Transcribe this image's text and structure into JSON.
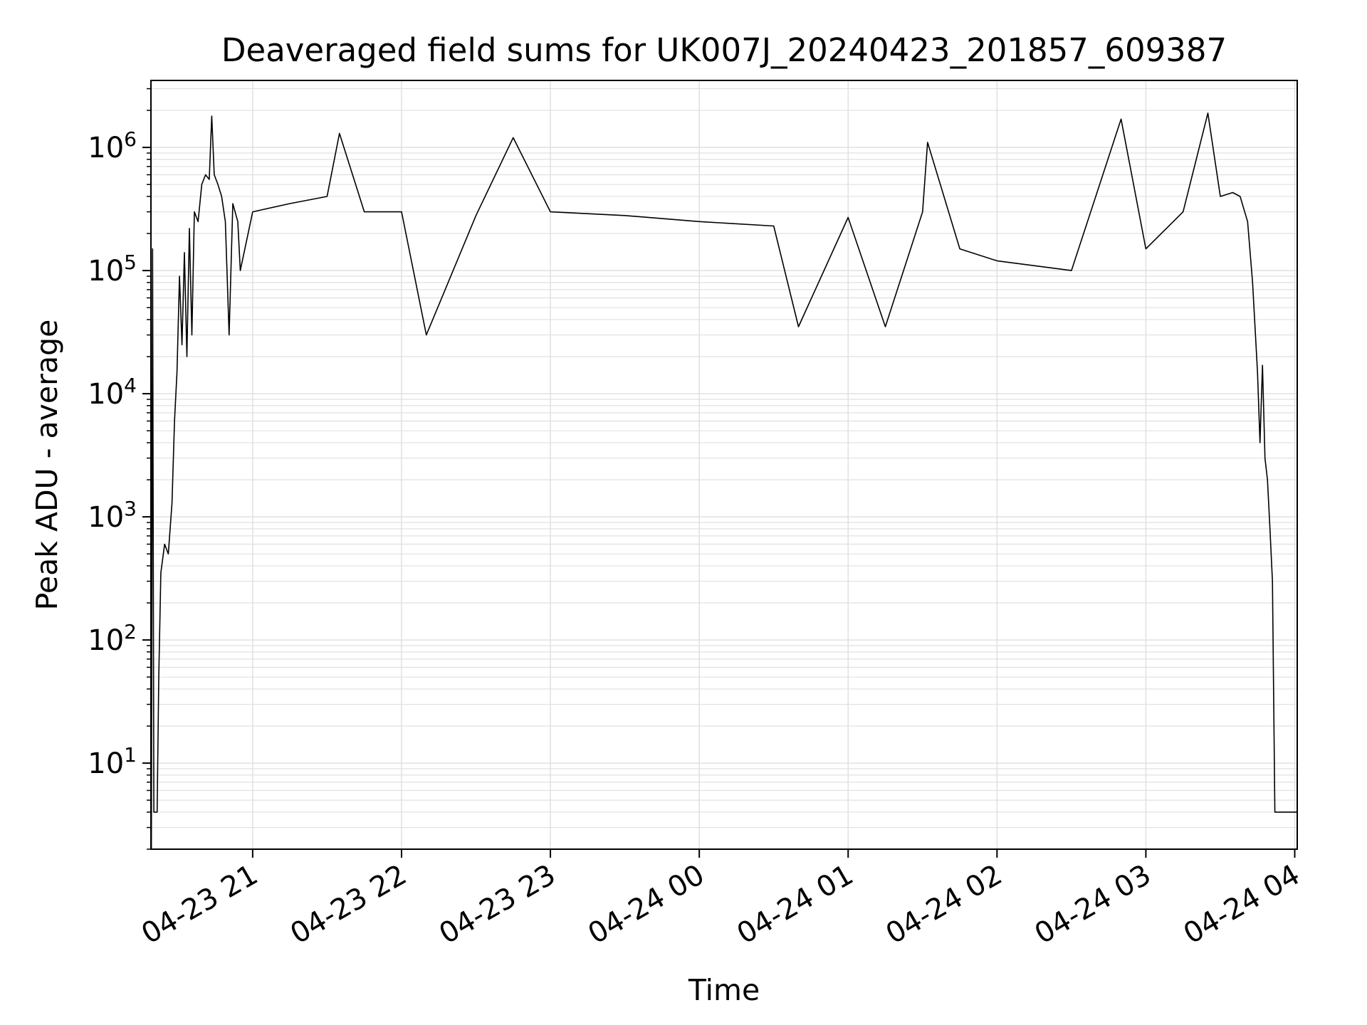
{
  "chart_data": {
    "type": "line",
    "title": "Deaveraged field sums for UK007J_20240423_201857_609387",
    "xlabel": "Time",
    "ylabel": "Peak ADU - average",
    "yscale": "log",
    "ylim": [
      2,
      3500000
    ],
    "xlim": [
      "2024-04-23 20:19",
      "2024-04-24 04:01"
    ],
    "grid": true,
    "grid_color": "#e0e0e0",
    "line_color": "#000000",
    "x_ticks": [
      {
        "label": "04-23 21",
        "t": "2024-04-23 21:00"
      },
      {
        "label": "04-23 22",
        "t": "2024-04-23 22:00"
      },
      {
        "label": "04-23 23",
        "t": "2024-04-23 23:00"
      },
      {
        "label": "04-24 00",
        "t": "2024-04-24 00:00"
      },
      {
        "label": "04-24 01",
        "t": "2024-04-24 01:00"
      },
      {
        "label": "04-24 02",
        "t": "2024-04-24 02:00"
      },
      {
        "label": "04-24 03",
        "t": "2024-04-24 03:00"
      },
      {
        "label": "04-24 04",
        "t": "2024-04-24 04:00"
      }
    ],
    "y_ticks": [
      {
        "base": "10",
        "exp": "1",
        "value": 10
      },
      {
        "base": "10",
        "exp": "2",
        "value": 100
      },
      {
        "base": "10",
        "exp": "3",
        "value": 1000
      },
      {
        "base": "10",
        "exp": "4",
        "value": 10000
      },
      {
        "base": "10",
        "exp": "5",
        "value": 100000
      },
      {
        "base": "10",
        "exp": "6",
        "value": 1000000
      }
    ],
    "series": [
      {
        "points": [
          [
            "2024-04-23 20:19:10",
            2
          ],
          [
            "2024-04-23 20:19:40",
            150000
          ],
          [
            "2024-04-23 20:20:10",
            4
          ],
          [
            "2024-04-23 20:21:30",
            4
          ],
          [
            "2024-04-23 20:22:10",
            50
          ],
          [
            "2024-04-23 20:23:00",
            350
          ],
          [
            "2024-04-23 20:24:30",
            600
          ],
          [
            "2024-04-23 20:26:00",
            500
          ],
          [
            "2024-04-23 20:27:30",
            1300
          ],
          [
            "2024-04-23 20:28:30",
            6000
          ],
          [
            "2024-04-23 20:29:30",
            15000
          ],
          [
            "2024-04-23 20:30:30",
            90000
          ],
          [
            "2024-04-23 20:31:30",
            25000
          ],
          [
            "2024-04-23 20:32:30",
            140000
          ],
          [
            "2024-04-23 20:33:30",
            20000
          ],
          [
            "2024-04-23 20:34:30",
            220000
          ],
          [
            "2024-04-23 20:35:30",
            30000
          ],
          [
            "2024-04-23 20:36:30",
            300000
          ],
          [
            "2024-04-23 20:38:00",
            250000
          ],
          [
            "2024-04-23 20:39:30",
            500000
          ],
          [
            "2024-04-23 20:41:00",
            600000
          ],
          [
            "2024-04-23 20:42:30",
            550000
          ],
          [
            "2024-04-23 20:43:30",
            1800000
          ],
          [
            "2024-04-23 20:44:30",
            600000
          ],
          [
            "2024-04-23 20:46:00",
            500000
          ],
          [
            "2024-04-23 20:47:30",
            400000
          ],
          [
            "2024-04-23 20:49:00",
            250000
          ],
          [
            "2024-04-23 20:50:30",
            30000
          ],
          [
            "2024-04-23 20:52:00",
            350000
          ],
          [
            "2024-04-23 20:54:00",
            250000
          ],
          [
            "2024-04-23 20:55:00",
            100000
          ],
          [
            "2024-04-23 21:00:00",
            300000
          ],
          [
            "2024-04-23 21:15:00",
            350000
          ],
          [
            "2024-04-23 21:30:00",
            400000
          ],
          [
            "2024-04-23 21:35:00",
            1300000
          ],
          [
            "2024-04-23 21:45:00",
            300000
          ],
          [
            "2024-04-23 22:00:00",
            300000
          ],
          [
            "2024-04-23 22:10:00",
            30000
          ],
          [
            "2024-04-23 22:30:00",
            280000
          ],
          [
            "2024-04-23 22:45:00",
            1200000
          ],
          [
            "2024-04-23 23:00:00",
            300000
          ],
          [
            "2024-04-23 23:30:00",
            280000
          ],
          [
            "2024-04-24 00:00:00",
            250000
          ],
          [
            "2024-04-24 00:30:00",
            230000
          ],
          [
            "2024-04-24 00:40:00",
            35000
          ],
          [
            "2024-04-24 01:00:00",
            270000
          ],
          [
            "2024-04-24 01:15:00",
            35000
          ],
          [
            "2024-04-24 01:30:00",
            300000
          ],
          [
            "2024-04-24 01:32:00",
            1100000
          ],
          [
            "2024-04-24 01:45:00",
            150000
          ],
          [
            "2024-04-24 02:00:00",
            120000
          ],
          [
            "2024-04-24 02:30:00",
            100000
          ],
          [
            "2024-04-24 02:50:00",
            1700000
          ],
          [
            "2024-04-24 03:00:00",
            150000
          ],
          [
            "2024-04-24 03:15:00",
            300000
          ],
          [
            "2024-04-24 03:25:00",
            1900000
          ],
          [
            "2024-04-24 03:30:00",
            400000
          ],
          [
            "2024-04-24 03:35:00",
            430000
          ],
          [
            "2024-04-24 03:38:00",
            400000
          ],
          [
            "2024-04-24 03:41:00",
            250000
          ],
          [
            "2024-04-24 03:43:00",
            80000
          ],
          [
            "2024-04-24 03:45:00",
            15000
          ],
          [
            "2024-04-24 03:46:00",
            4000
          ],
          [
            "2024-04-24 03:47:00",
            17000
          ],
          [
            "2024-04-24 03:48:00",
            3000
          ],
          [
            "2024-04-24 03:49:00",
            2000
          ],
          [
            "2024-04-24 03:50:00",
            800
          ],
          [
            "2024-04-24 03:51:00",
            300
          ],
          [
            "2024-04-24 03:52:00",
            4
          ],
          [
            "2024-04-24 04:01:00",
            4
          ]
        ]
      }
    ]
  }
}
